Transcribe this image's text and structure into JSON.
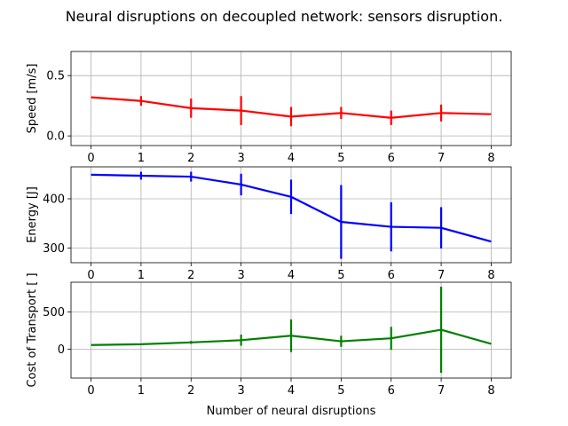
{
  "chart_data": {
    "title": "Neural disruptions on decoupled network: sensors disruption.",
    "xlabel": "Number of neural disruptions",
    "x": [
      0,
      1,
      2,
      3,
      4,
      5,
      6,
      7,
      8
    ],
    "xticks": [
      0,
      1,
      2,
      3,
      4,
      5,
      6,
      7,
      8
    ],
    "grid": true,
    "subplots": [
      {
        "type": "line",
        "ylabel": "Speed [m/s]",
        "color": "#ff0000",
        "ylim": [
          -0.08,
          0.7
        ],
        "yticks": [
          0.0,
          0.5
        ],
        "ytick_labels": [
          "0.0",
          "0.5"
        ],
        "values": [
          0.32,
          0.29,
          0.23,
          0.21,
          0.16,
          0.19,
          0.15,
          0.19,
          0.18
        ],
        "errors": [
          0.0,
          0.04,
          0.08,
          0.12,
          0.08,
          0.05,
          0.06,
          0.07,
          0.0
        ]
      },
      {
        "type": "line",
        "ylabel": "Energy [J]",
        "color": "#0000ff",
        "ylim": [
          270,
          465
        ],
        "yticks": [
          300,
          400
        ],
        "ytick_labels": [
          "300",
          "400"
        ],
        "values": [
          449,
          447,
          445,
          429,
          404,
          353,
          343,
          341,
          313
        ],
        "errors": [
          0,
          8,
          10,
          22,
          35,
          75,
          50,
          42,
          0
        ]
      },
      {
        "type": "line",
        "ylabel": "Cost of Transport [ ]",
        "color": "#008000",
        "ylim": [
          -390,
          900
        ],
        "yticks": [
          0,
          500
        ],
        "ytick_labels": [
          "0",
          "500"
        ],
        "values": [
          55,
          65,
          90,
          120,
          180,
          105,
          145,
          260,
          70
        ],
        "errors": [
          0,
          0,
          20,
          75,
          220,
          75,
          155,
          580,
          0
        ]
      }
    ]
  }
}
